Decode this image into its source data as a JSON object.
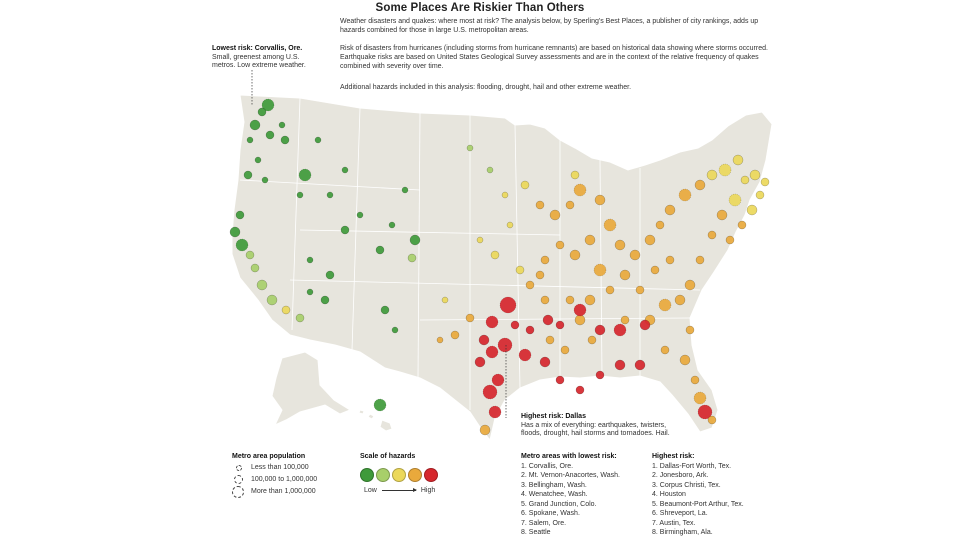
{
  "title": "Some Places Are Riskier Than Others",
  "intro": {
    "p1": "Weather disasters and quakes: where most at risk? The analysis below, by Sperling's Best Places, a publisher of city rankings, adds up hazards combined for those in large U.S. metropolitan areas.",
    "p2": "Risk of disasters from hurricanes (including storms from hurricane remnants) are based on historical data showing where storms occurred. Earthquake risks are based on United States Geological Survey assessments and are in the context of the relative frequency of quakes combined with severity over time.",
    "p3": "Additional hazards included in this analysis: flooding, drought, hail and other extreme weather."
  },
  "callouts": {
    "lowest_title": "Lowest risk: Corvallis, Ore.",
    "lowest_text": "Small, greenest among U.S. metros. Low extreme weather.",
    "highest_title": "Highest risk: Dallas",
    "highest_text": "Has a mix of everything: earthquakes, twisters, floods, drought, hail storms and tornadoes. Hail."
  },
  "legend": {
    "population_title": "Metro area population",
    "population_items": [
      "Less than 100,000",
      "100,000 to 1,000,000",
      "More than 1,000,000"
    ],
    "scale_title": "Scale of hazards",
    "scale_low": "Low",
    "scale_high": "High",
    "scale_colors": [
      "#3f9a3a",
      "#a8cf6a",
      "#ecd85a",
      "#e9a93c",
      "#d6262c"
    ]
  },
  "lowest_list": {
    "title": "Metro areas with lowest risk:",
    "items": [
      "1. Corvallis, Ore.",
      "2. Mt. Vernon-Anacortes, Wash.",
      "3. Bellingham, Wash.",
      "4. Wenatchee, Wash.",
      "5. Grand Junction, Colo.",
      "6. Spokane, Wash.",
      "7. Salem, Ore.",
      "8. Seattle"
    ]
  },
  "highest_list": {
    "title": "Highest risk:",
    "items": [
      "1. Dallas-Fort Worth, Tex.",
      "2. Jonesboro, Ark.",
      "3. Corpus Christi, Tex.",
      "4. Houston",
      "5. Beaumont-Port Arthur, Tex.",
      "6. Shreveport, La.",
      "7. Austin, Tex.",
      "8. Birmingham, Ala."
    ]
  },
  "colors": {
    "land": "#e7e5dd",
    "border": "#ffffff",
    "ink": "#222222"
  }
}
